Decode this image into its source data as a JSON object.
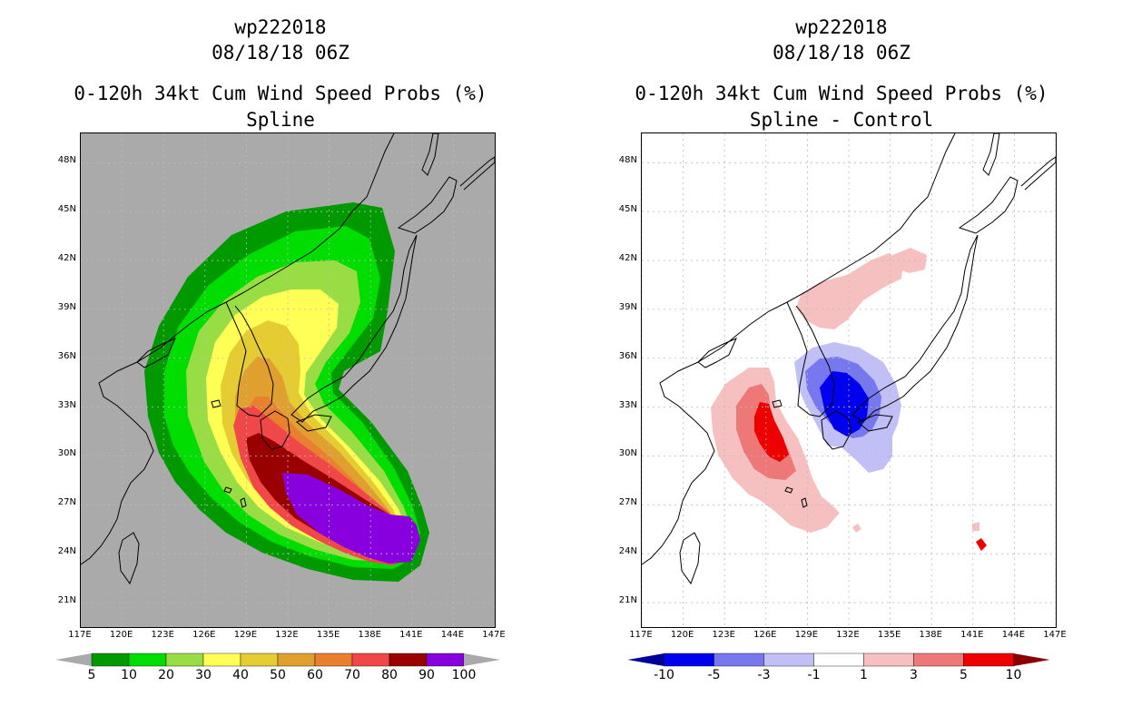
{
  "left_panel": {
    "storm_id": "wp222018",
    "datetime": "08/18/18 06Z",
    "title": "0-120h 34kt Cum Wind Speed Probs (%)",
    "subtitle": "Spline",
    "background_color": "#aaaaaa",
    "colorbar": {
      "colors": [
        "#009900",
        "#00dd00",
        "#99dd44",
        "#ffff55",
        "#e6cc33",
        "#e0a030",
        "#e88030",
        "#f04848",
        "#990000",
        "#8800dd"
      ],
      "labels": [
        "5",
        "10",
        "20",
        "30",
        "40",
        "50",
        "60",
        "70",
        "80",
        "90",
        "100"
      ],
      "under_color": "#aaaaaa",
      "over_color": "#aaaaaa"
    }
  },
  "right_panel": {
    "storm_id": "wp222018",
    "datetime": "08/18/18 06Z",
    "title": "0-120h 34kt Cum Wind Speed Probs (%)",
    "subtitle": "Spline - Control",
    "background_color": "#ffffff",
    "colorbar": {
      "colors": [
        "#0000ee",
        "#7777ee",
        "#c0c0f6",
        "#ffffff",
        "#f6c0c0",
        "#ee7777",
        "#ee0000"
      ],
      "labels": [
        "-10",
        "-5",
        "-3",
        "-1",
        "1",
        "3",
        "5",
        "10"
      ],
      "under_color": "#000099",
      "over_color": "#880000"
    }
  },
  "axes": {
    "lon_labels": [
      "117E",
      "120E",
      "123E",
      "126E",
      "129E",
      "132E",
      "135E",
      "138E",
      "141E",
      "144E",
      "147E"
    ],
    "lat_labels": [
      "48N",
      "45N",
      "42N",
      "39N",
      "36N",
      "33N",
      "30N",
      "27N",
      "24N",
      "21N"
    ],
    "lon_range": [
      117,
      147
    ],
    "lat_range": [
      19.5,
      49.8
    ]
  }
}
